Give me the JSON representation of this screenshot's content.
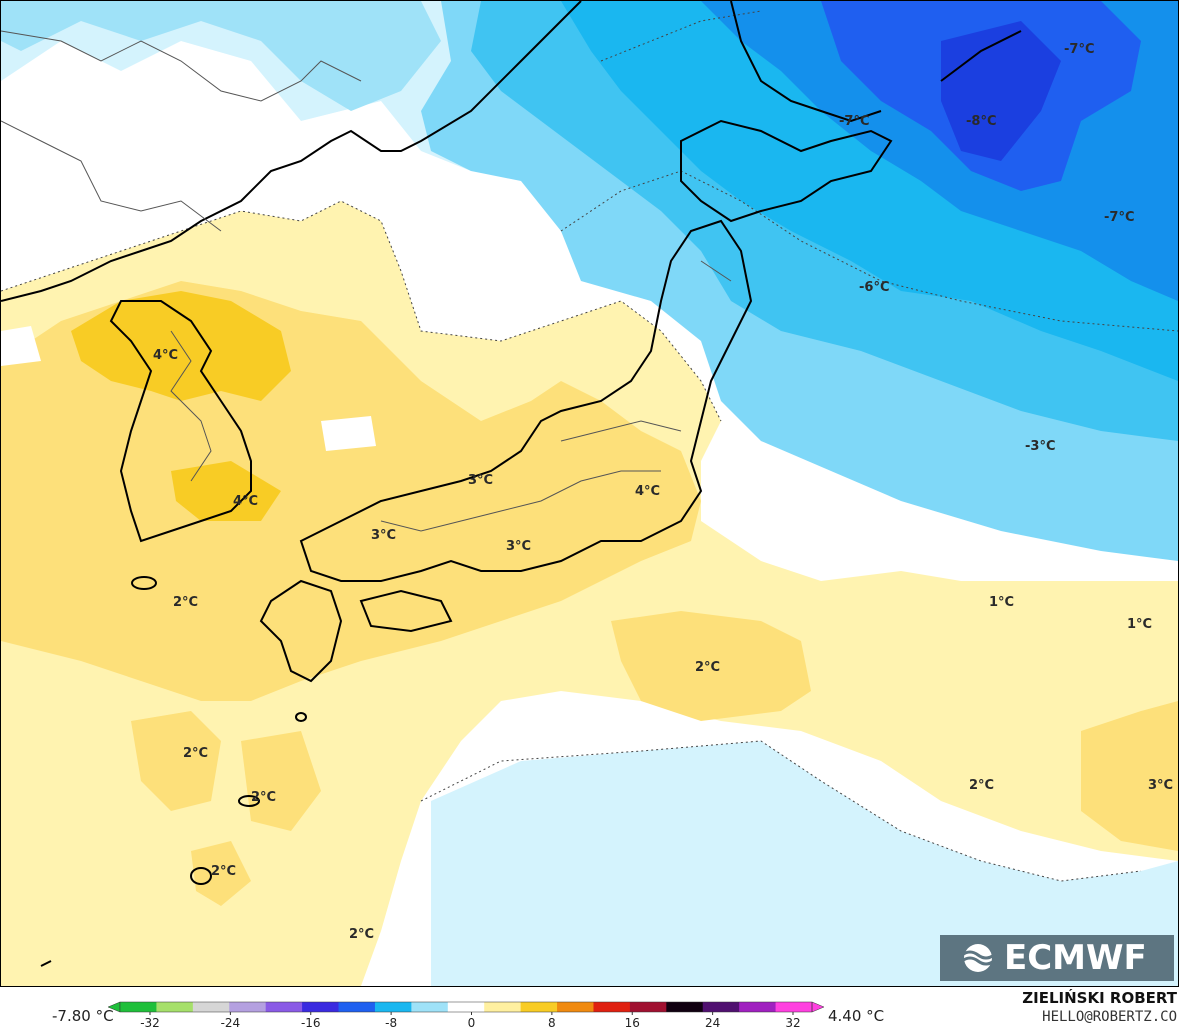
{
  "map": {
    "temperature_labels": [
      "-7°C",
      "-7°C",
      "-8°C",
      "-7°C",
      "-6°C",
      "-3°C",
      "4°C",
      "4°C",
      "3°C",
      "4°C",
      "3°C",
      "3°C",
      "2°C",
      "2°C",
      "2°C",
      "1°C",
      "1°C",
      "2°C",
      "2°C",
      "3°C",
      "2°C",
      "2°C"
    ],
    "colors": {
      "ocean_blue_dark": "#1f4ff0",
      "ocean_blue": "#1ab7f0",
      "ocean_blue_light": "#7fd8f8",
      "ocean_blue_pale": "#d4f3fd",
      "warm_yellow_pale": "#fff3b0",
      "warm_yellow": "#fde07a",
      "warm_yellow_strong": "#f8cc25",
      "coastline": "#000000",
      "borders": "#555555"
    }
  },
  "legend": {
    "min_label": "-7.80 °C",
    "max_label": "4.40 °C",
    "ticks": [
      "-32",
      "-24",
      "-16",
      "-8",
      "0",
      "8",
      "16",
      "24",
      "32"
    ],
    "tick_values": [
      -32,
      -24,
      -16,
      -8,
      0,
      8,
      16,
      24,
      32
    ],
    "colors": [
      "#1fbf3a",
      "#a6e06a",
      "#d6d6d6",
      "#b4a0e0",
      "#8a5ae6",
      "#3a2ae0",
      "#1f60f0",
      "#1ab7f0",
      "#9fe2f8",
      "#ffffff",
      "#fff0a0",
      "#f8cc25",
      "#f08a10",
      "#e02010",
      "#a01030",
      "#100010",
      "#501070",
      "#a020c0",
      "#ff40e0"
    ]
  },
  "branding": {
    "logo_text": "ECMWF",
    "author": "ZIELIŃSKI ROBERT",
    "email": "HELLO@ROBERTZ.CO"
  }
}
